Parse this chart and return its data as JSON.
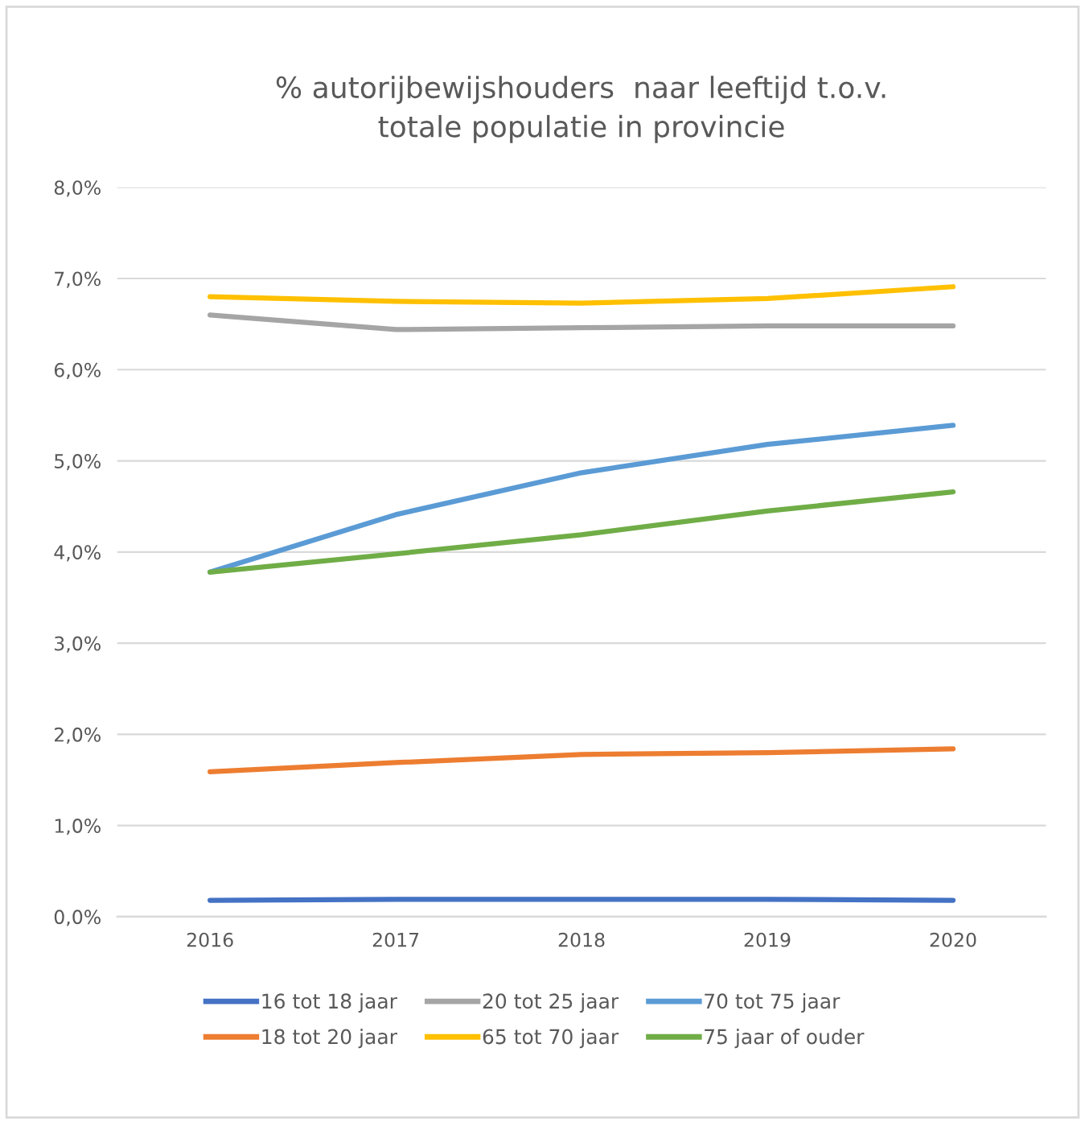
{
  "chart_data": {
    "type": "line",
    "title": "% autorijbewijshouders  naar leeftijd t.o.v.\ntotale populatie in provincie",
    "categories": [
      "2016",
      "2017",
      "2018",
      "2019",
      "2020"
    ],
    "series": [
      {
        "name": "16 tot 18 jaar",
        "color": "#4472c4",
        "values": [
          0.18,
          0.19,
          0.19,
          0.19,
          0.18
        ]
      },
      {
        "name": "18 tot 20 jaar",
        "color": "#ed7d31",
        "values": [
          1.59,
          1.69,
          1.78,
          1.8,
          1.84
        ]
      },
      {
        "name": "20 tot 25 jaar",
        "color": "#a5a5a5",
        "values": [
          6.6,
          6.44,
          6.46,
          6.48,
          6.48
        ]
      },
      {
        "name": "65 tot 70 jaar",
        "color": "#ffc000",
        "values": [
          6.8,
          6.75,
          6.73,
          6.78,
          6.91
        ]
      },
      {
        "name": "70 tot 75 jaar",
        "color": "#5b9bd5",
        "values": [
          3.78,
          4.41,
          4.87,
          5.18,
          5.39
        ]
      },
      {
        "name": "75 jaar of ouder",
        "color": "#70ad47",
        "values": [
          3.78,
          3.98,
          4.19,
          4.45,
          4.66
        ]
      }
    ],
    "ylim": [
      0,
      8
    ],
    "yticks": [
      {
        "value": 0,
        "label": "0,0%"
      },
      {
        "value": 1,
        "label": "1,0%"
      },
      {
        "value": 2,
        "label": "2,0%"
      },
      {
        "value": 3,
        "label": "3,0%"
      },
      {
        "value": 4,
        "label": "4,0%"
      },
      {
        "value": 5,
        "label": "5,0%"
      },
      {
        "value": 6,
        "label": "6,0%"
      },
      {
        "value": 7,
        "label": "7,0%"
      },
      {
        "value": 8,
        "label": "8,0%"
      }
    ],
    "grid": "y",
    "legend": "bottom",
    "marker": "none",
    "line_style": "solid"
  }
}
